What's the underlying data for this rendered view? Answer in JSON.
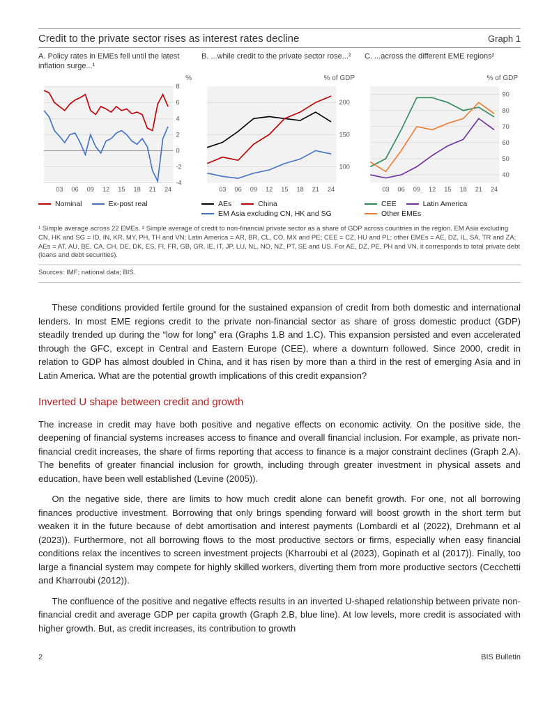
{
  "graph": {
    "title": "Credit to the private sector rises as interest rates decline",
    "number": "Graph 1",
    "panelA": {
      "title": "A. Policy rates in EMEs fell until the latest inflation surge...¹",
      "ylabel": "%",
      "type": "line",
      "background_color": "#f2f2f2",
      "grid_color": "#cccccc",
      "xmin": 2000,
      "xmax": 2025,
      "ymin": -4,
      "ymax": 8,
      "yticks": [
        -4,
        -2,
        0,
        2,
        4,
        6,
        8
      ],
      "xticks": [
        2003,
        2006,
        2009,
        2012,
        2015,
        2018,
        2021,
        2024
      ],
      "xtick_labels": [
        "03",
        "06",
        "09",
        "12",
        "15",
        "18",
        "21",
        "24"
      ],
      "series": [
        {
          "name": "Nominal",
          "color": "#c00000",
          "x": [
            2000,
            2001,
            2002,
            2003,
            2004,
            2005,
            2006,
            2007,
            2008,
            2009,
            2010,
            2011,
            2012,
            2013,
            2014,
            2015,
            2016,
            2017,
            2018,
            2019,
            2020,
            2021,
            2022,
            2023,
            2024
          ],
          "y": [
            7.5,
            7.2,
            6.0,
            5.5,
            5.0,
            5.8,
            6.3,
            6.6,
            7.0,
            5.0,
            4.5,
            5.5,
            5.2,
            4.8,
            5.5,
            5.0,
            5.2,
            4.6,
            4.8,
            4.5,
            2.8,
            2.5,
            5.8,
            7.0,
            5.5
          ]
        },
        {
          "name": "Ex-post real",
          "color": "#4472c4",
          "x": [
            2000,
            2001,
            2002,
            2003,
            2004,
            2005,
            2006,
            2007,
            2008,
            2009,
            2010,
            2011,
            2012,
            2013,
            2014,
            2015,
            2016,
            2017,
            2018,
            2019,
            2020,
            2021,
            2022,
            2023,
            2024
          ],
          "y": [
            5.0,
            4.2,
            2.5,
            1.8,
            1.0,
            2.0,
            2.2,
            1.0,
            -0.5,
            2.0,
            0.5,
            -0.3,
            1.2,
            1.5,
            2.2,
            2.5,
            2.0,
            1.2,
            0.8,
            1.5,
            0.5,
            -2.5,
            -3.8,
            1.5,
            3.0
          ]
        }
      ]
    },
    "panelB": {
      "title": "B. ...while credit to the private sector rose...²",
      "ylabel": "% of GDP",
      "type": "line",
      "background_color": "#f2f2f2",
      "grid_color": "#cccccc",
      "xmin": 2000,
      "xmax": 2025,
      "ymin": 75,
      "ymax": 225,
      "yticks": [
        100,
        150,
        200
      ],
      "xticks": [
        2003,
        2006,
        2009,
        2012,
        2015,
        2018,
        2021,
        2024
      ],
      "xtick_labels": [
        "03",
        "06",
        "09",
        "12",
        "15",
        "18",
        "21",
        "24"
      ],
      "series": [
        {
          "name": "AEs",
          "color": "#000000",
          "x": [
            2000,
            2003,
            2006,
            2009,
            2012,
            2015,
            2018,
            2021,
            2024
          ],
          "y": [
            130,
            138,
            155,
            175,
            178,
            175,
            172,
            185,
            170
          ]
        },
        {
          "name": "China",
          "color": "#c00000",
          "x": [
            2000,
            2003,
            2006,
            2009,
            2012,
            2015,
            2018,
            2021,
            2024
          ],
          "y": [
            105,
            115,
            110,
            135,
            150,
            175,
            185,
            200,
            210
          ]
        },
        {
          "name": "EM Asia excluding CN, HK and SG",
          "color": "#4472c4",
          "x": [
            2000,
            2003,
            2006,
            2009,
            2012,
            2015,
            2018,
            2021,
            2024
          ],
          "y": [
            90,
            85,
            82,
            90,
            95,
            105,
            112,
            125,
            120
          ]
        }
      ]
    },
    "panelC": {
      "title": "C. ...across the different EME regions²",
      "ylabel": "% of GDP",
      "type": "line",
      "background_color": "#f2f2f2",
      "grid_color": "#cccccc",
      "xmin": 2000,
      "xmax": 2025,
      "ymin": 35,
      "ymax": 95,
      "yticks": [
        40,
        50,
        60,
        70,
        80,
        90
      ],
      "xticks": [
        2003,
        2006,
        2009,
        2012,
        2015,
        2018,
        2021,
        2024
      ],
      "xtick_labels": [
        "03",
        "06",
        "09",
        "12",
        "15",
        "18",
        "21",
        "24"
      ],
      "series": [
        {
          "name": "CEE",
          "color": "#2e8b57",
          "x": [
            2000,
            2003,
            2006,
            2009,
            2012,
            2015,
            2018,
            2021,
            2024
          ],
          "y": [
            45,
            50,
            68,
            88,
            88,
            85,
            80,
            82,
            76
          ]
        },
        {
          "name": "Latin America",
          "color": "#7030a0",
          "x": [
            2000,
            2003,
            2006,
            2009,
            2012,
            2015,
            2018,
            2021,
            2024
          ],
          "y": [
            40,
            38,
            40,
            45,
            52,
            58,
            62,
            75,
            68
          ]
        },
        {
          "name": "Other EMEs",
          "color": "#ed7d31",
          "x": [
            2000,
            2003,
            2006,
            2009,
            2012,
            2015,
            2018,
            2021,
            2024
          ],
          "y": [
            48,
            42,
            55,
            70,
            68,
            72,
            75,
            85,
            78
          ]
        }
      ]
    },
    "footnote": "¹  Simple average across 22 EMEs.    ²  Simple average of credit to non-financial private sector as a share of GDP across countries in the region. EM Asia excluding CN, HK and SG = ID, IN, KR, MY, PH, TH and VN; Latin America = AR, BR, CL, CO, MX and PE; CEE = CZ, HU and PL; other EMEs = AE, DZ, IL, SA, TR and ZA; AEs = AT, AU, BE, CA, CH, DE, DK, ES, FI, FR, GB, GR, IE, IT, JP, LU, NL, NO, NZ, PT, SE and US. For AE, DZ, PE, PH and VN, it corresponds to total private debt (loans and debt securities).",
    "sources": "Sources: IMF; national data; BIS."
  },
  "body": {
    "p1": "These conditions provided fertile ground for the sustained expansion of credit from both domestic and international lenders. In most EME regions credit to the private non-financial sector as share of gross domestic product (GDP) steadily trended up during the “low for long” era (Graphs 1.B and 1.C). This expansion persisted and even accelerated through the GFC, except in Central and Eastern Europe (CEE), where a downturn followed. Since 2000, credit in relation to GDP has almost doubled in China, and it has risen by more than a third in the rest of emerging Asia and in Latin America. What are the potential growth implications of this credit expansion?",
    "heading": "Inverted U shape between credit and growth",
    "p2": "The increase in credit may have both positive and negative effects on economic activity. On the positive side, the deepening of financial systems increases access to finance and overall financial inclusion. For example, as private non-financial credit increases, the share of firms reporting that access to finance is a major constraint declines (Graph 2.A). The benefits of greater financial inclusion for growth, including through greater investment in physical assets and education, have been well established (Levine (2005)).",
    "p3": "On the negative side, there are limits to how much credit alone can benefit growth. For one, not all borrowing finances productive investment. Borrowing that only brings spending forward will boost growth in the short term but weaken it in the future because of debt amortisation and interest payments (Lombardi et al (2022), Drehmann et al (2023)). Furthermore, not all borrowing flows to the most productive sectors or firms, especially when easy financial conditions relax the incentives to screen investment projects (Kharroubi et al (2023), Gopinath et al (2017)). Finally, too large a financial system may compete for highly skilled workers, diverting them from more productive sectors (Cecchetti and Kharroubi (2012)).",
    "p4": "The confluence of the positive and negative effects results in an inverted U-shaped relationship between private non-financial credit and average GDP per capita growth (Graph 2.B, blue line). At low levels, more credit is associated with higher growth. But, as credit increases, its contribution to growth"
  },
  "footer": {
    "page": "2",
    "pub": "BIS Bulletin"
  }
}
